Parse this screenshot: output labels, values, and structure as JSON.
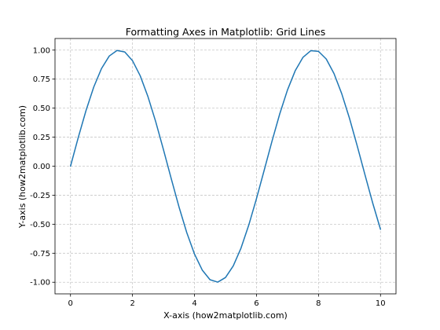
{
  "chart_data": {
    "type": "line",
    "title": "Formatting Axes in Matplotlib: Grid Lines",
    "xlabel": "X-axis (how2matplotlib.com)",
    "ylabel": "Y-axis (how2matplotlib.com)",
    "xlim": [
      -0.5,
      10.5
    ],
    "ylim": [
      -1.1,
      1.1
    ],
    "x_ticks": [
      0,
      2,
      4,
      6,
      8,
      10
    ],
    "x_tick_labels": [
      "0",
      "2",
      "4",
      "6",
      "8",
      "10"
    ],
    "y_ticks": [
      1.0,
      0.75,
      0.5,
      0.25,
      0.0,
      -0.25,
      -0.5,
      -0.75,
      -1.0
    ],
    "y_tick_labels": [
      "1.00",
      "0.75",
      "0.50",
      "0.25",
      "0.00",
      "-0.25",
      "-0.50",
      "-0.75",
      "-1.00"
    ],
    "grid": true,
    "grid_color": "#c8c8c8",
    "series": [
      {
        "color": "#1f77b4",
        "x": [
          0,
          0.25,
          0.5,
          0.75,
          1,
          1.25,
          1.5,
          1.75,
          2,
          2.25,
          2.5,
          2.75,
          3,
          3.25,
          3.5,
          3.75,
          4,
          4.25,
          4.5,
          4.75,
          5,
          5.25,
          5.5,
          5.75,
          6,
          6.25,
          6.5,
          6.75,
          7,
          7.25,
          7.5,
          7.75,
          8,
          8.25,
          8.5,
          8.75,
          9,
          9.25,
          9.5,
          9.75,
          10
        ],
        "y": [
          0.0,
          0.247,
          0.479,
          0.682,
          0.841,
          0.949,
          0.997,
          0.984,
          0.909,
          0.778,
          0.598,
          0.382,
          0.141,
          -0.108,
          -0.351,
          -0.572,
          -0.757,
          -0.895,
          -0.978,
          -0.999,
          -0.959,
          -0.859,
          -0.706,
          -0.508,
          -0.279,
          -0.033,
          0.215,
          0.451,
          0.657,
          0.823,
          0.938,
          0.995,
          0.989,
          0.923,
          0.798,
          0.624,
          0.412,
          0.174,
          -0.075,
          -0.319,
          -0.544
        ]
      }
    ]
  }
}
